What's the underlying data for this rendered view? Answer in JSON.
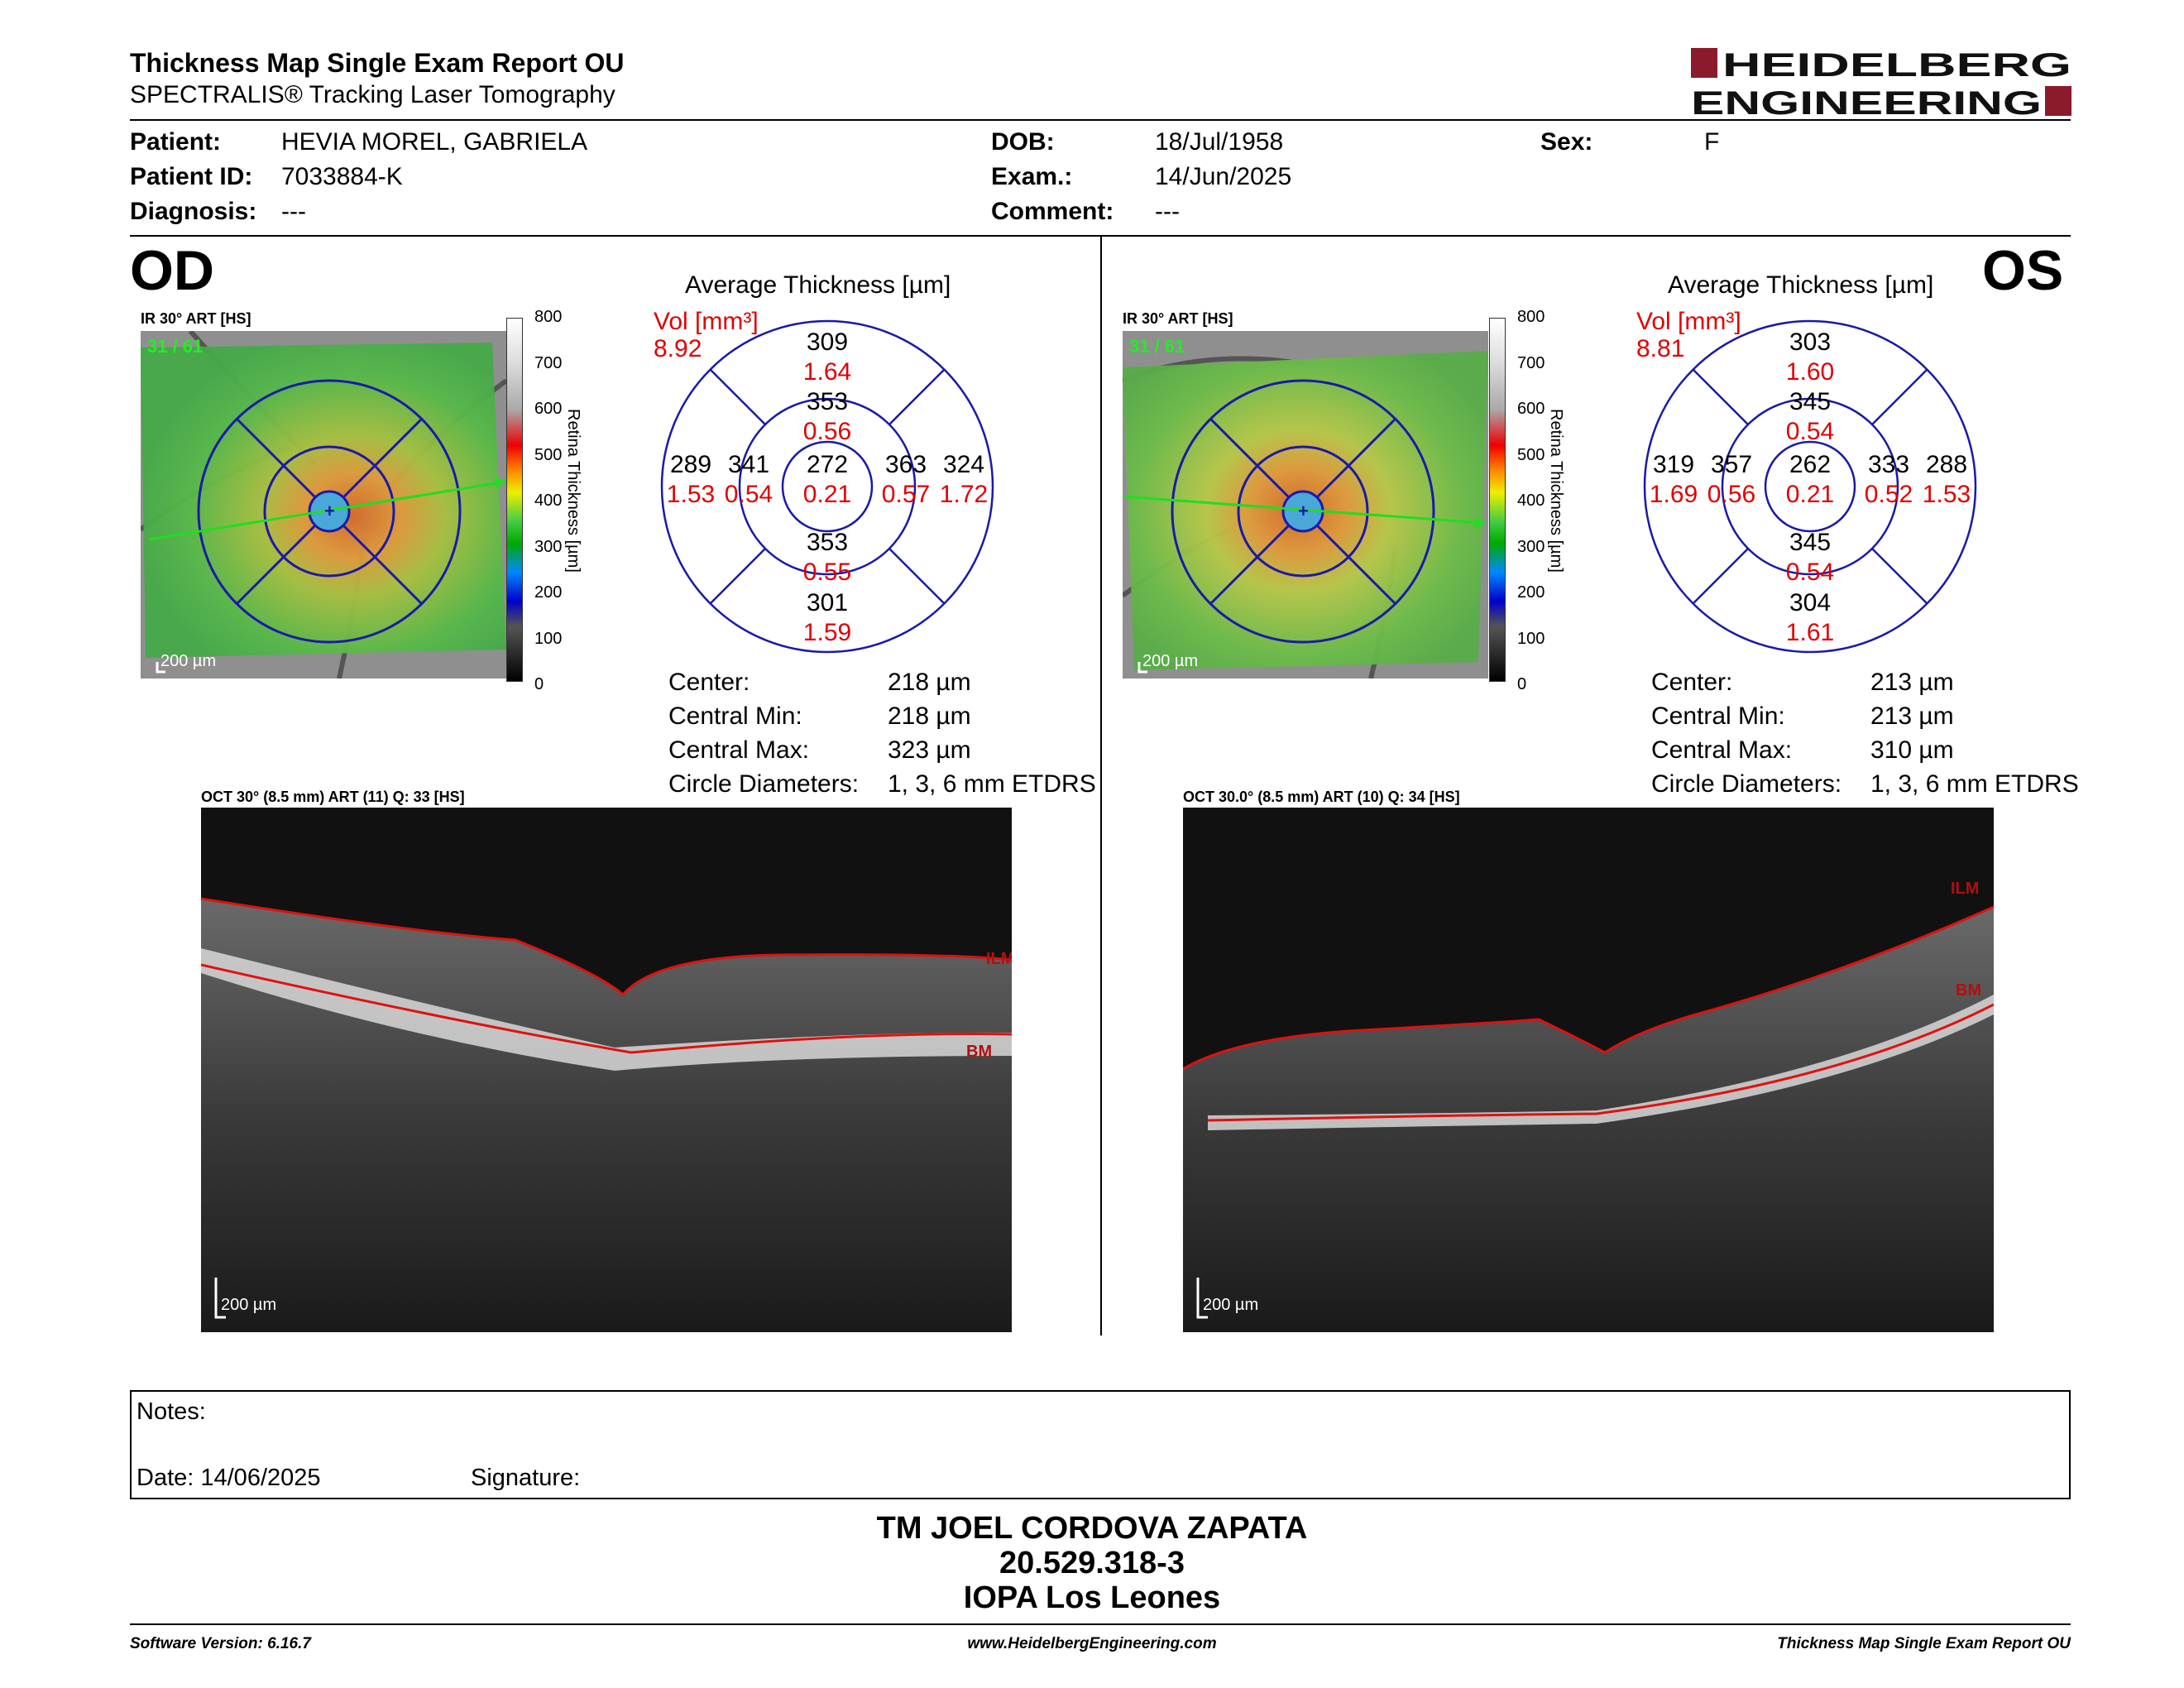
{
  "header": {
    "title": "Thickness Map Single Exam Report OU",
    "subtitle": "SPECTRALIS® Tracking Laser Tomography",
    "logo_line1": "HEIDELBERG",
    "logo_line2": "ENGINEERING",
    "brand_color": "#8b1a2b"
  },
  "patient": {
    "patient_label": "Patient:",
    "patient": "HEVIA MOREL, GABRIELA",
    "id_label": "Patient ID:",
    "id": "7033884-K",
    "diag_label": "Diagnosis:",
    "diagnosis": "---",
    "dob_label": "DOB:",
    "dob": "18/Jul/1958",
    "exam_label": "Exam.:",
    "exam": "14/Jun/2025",
    "comment_label": "Comment:",
    "comment": "---",
    "sex_label": "Sex:",
    "sex": "F"
  },
  "od": {
    "eye": "OD",
    "fundus_label": "IR 30° ART [HS]",
    "frames": "31 / 61",
    "fundus_scale": "200 µm",
    "scale_ticks": [
      "800",
      "700",
      "600",
      "500",
      "400",
      "300",
      "200",
      "100",
      "0"
    ],
    "scale_label": "Retina Thickness [µm]",
    "avg_title": "Average Thickness [µm]",
    "vol_label": "Vol [mm³]",
    "vol": "8.92",
    "grid": {
      "outer_sup": [
        "309",
        "1.64"
      ],
      "inner_sup": [
        "353",
        "0.56"
      ],
      "outer_temp": [
        "289",
        "1.53"
      ],
      "inner_temp": [
        "341",
        "0.54"
      ],
      "center": [
        "272",
        "0.21"
      ],
      "inner_nasal": [
        "363",
        "0.57"
      ],
      "outer_nasal": [
        "324",
        "1.72"
      ],
      "inner_inf": [
        "353",
        "0.55"
      ],
      "outer_inf": [
        "301",
        "1.59"
      ]
    },
    "stats": [
      [
        "Center:",
        "218 µm"
      ],
      [
        "Central Min:",
        "218 µm"
      ],
      [
        "Central Max:",
        "323 µm"
      ],
      [
        "Circle Diameters:",
        "1, 3, 6 mm ETDRS"
      ]
    ],
    "oct_label": "OCT 30° (8.5 mm) ART (11) Q: 33 [HS]",
    "oct_scale": "200 µm",
    "ilm": "ILM",
    "bm": "BM"
  },
  "os": {
    "eye": "OS",
    "fundus_label": "IR 30° ART [HS]",
    "frames": "31 / 61",
    "fundus_scale": "200 µm",
    "scale_ticks": [
      "800",
      "700",
      "600",
      "500",
      "400",
      "300",
      "200",
      "100",
      "0"
    ],
    "scale_label": "Retina Thickness [µm]",
    "avg_title": "Average Thickness [µm]",
    "vol_label": "Vol [mm³]",
    "vol": "8.81",
    "grid": {
      "outer_sup": [
        "303",
        "1.60"
      ],
      "inner_sup": [
        "345",
        "0.54"
      ],
      "outer_temp": [
        "319",
        "1.69"
      ],
      "inner_temp": [
        "357",
        "0.56"
      ],
      "center": [
        "262",
        "0.21"
      ],
      "inner_nasal": [
        "333",
        "0.52"
      ],
      "outer_nasal": [
        "288",
        "1.53"
      ],
      "inner_inf": [
        "345",
        "0.54"
      ],
      "outer_inf": [
        "304",
        "1.61"
      ]
    },
    "stats": [
      [
        "Center:",
        "213 µm"
      ],
      [
        "Central Min:",
        "213 µm"
      ],
      [
        "Central Max:",
        "310 µm"
      ],
      [
        "Circle Diameters:",
        "1, 3, 6 mm ETDRS"
      ]
    ],
    "oct_label": "OCT 30.0° (8.5 mm) ART (10) Q: 34 [HS]",
    "oct_scale": "200 µm",
    "ilm": "ILM",
    "bm": "BM"
  },
  "notes": {
    "notes_label": "Notes:",
    "date": "Date: 14/06/2025",
    "signature_label": "Signature:"
  },
  "signature": {
    "name": "TM JOEL CORDOVA ZAPATA",
    "rut": "20.529.318-3",
    "org": "IOPA Los Leones"
  },
  "footer": {
    "software": "Software Version: 6.16.7",
    "website": "www.HeidelbergEngineering.com",
    "report": "Thickness Map Single Exam Report OU"
  }
}
